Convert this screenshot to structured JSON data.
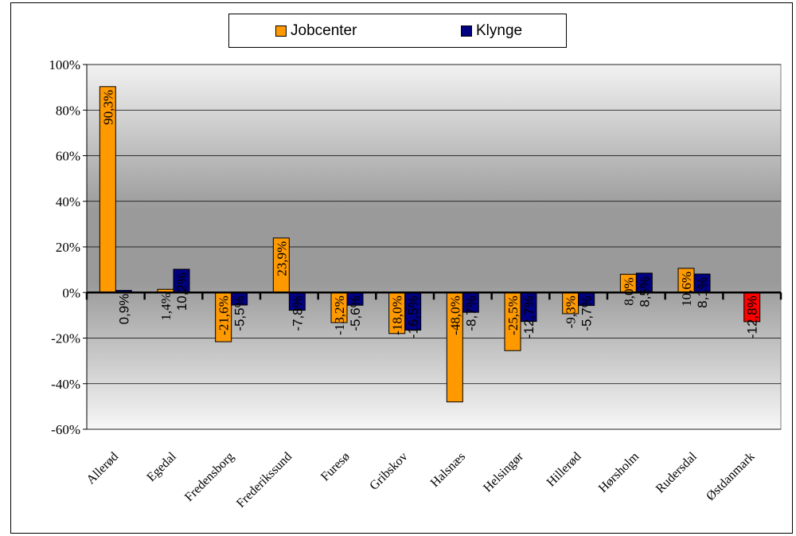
{
  "chart_data": {
    "type": "bar",
    "categories": [
      "Allerød",
      "Egedal",
      "Fredensborg",
      "Frederikssund",
      "Furesø",
      "Gribskov",
      "Halsnæs",
      "Helsingør",
      "Hillerød",
      "Hørsholm",
      "Rudersdal",
      "Østdanmark"
    ],
    "series": [
      {
        "name": "Jobcenter",
        "color": "#FF9900",
        "values": [
          90.3,
          1.4,
          -21.6,
          23.9,
          -13.2,
          -18.0,
          -48.0,
          -25.5,
          -9.3,
          8.0,
          10.6,
          null
        ],
        "labels": [
          "90,3%",
          "1,4%",
          "-21,6%",
          "23,9%",
          "-13,2%",
          "-18,0%",
          "-48,0%",
          "-25,5%",
          "-9,3%",
          "8,0%",
          "10,6%",
          ""
        ]
      },
      {
        "name": "Klynge",
        "color": "#000080",
        "values": [
          0.9,
          10.2,
          -5.5,
          -7.8,
          -5.6,
          -16.5,
          -8.7,
          -12.7,
          -5.7,
          8.5,
          8.1,
          -12.8
        ],
        "labels": [
          "0,9%",
          "10,2%",
          "-5,5%",
          "-7,8%",
          "-5,6%",
          "-16,5%",
          "-8,7%",
          "-12,7%",
          "-5,7%",
          "8,5%",
          "8,1%",
          "-12,8%"
        ]
      }
    ],
    "highlight": {
      "category": "Østdanmark",
      "color": "#FF0000"
    },
    "yticks": [
      "100%",
      "80%",
      "60%",
      "40%",
      "20%",
      "0%",
      "-20%",
      "-40%",
      "-60%"
    ],
    "ylim": [
      -60,
      100
    ],
    "title": "",
    "xlabel": "",
    "ylabel": "",
    "grid": true,
    "legend": "top-center"
  }
}
